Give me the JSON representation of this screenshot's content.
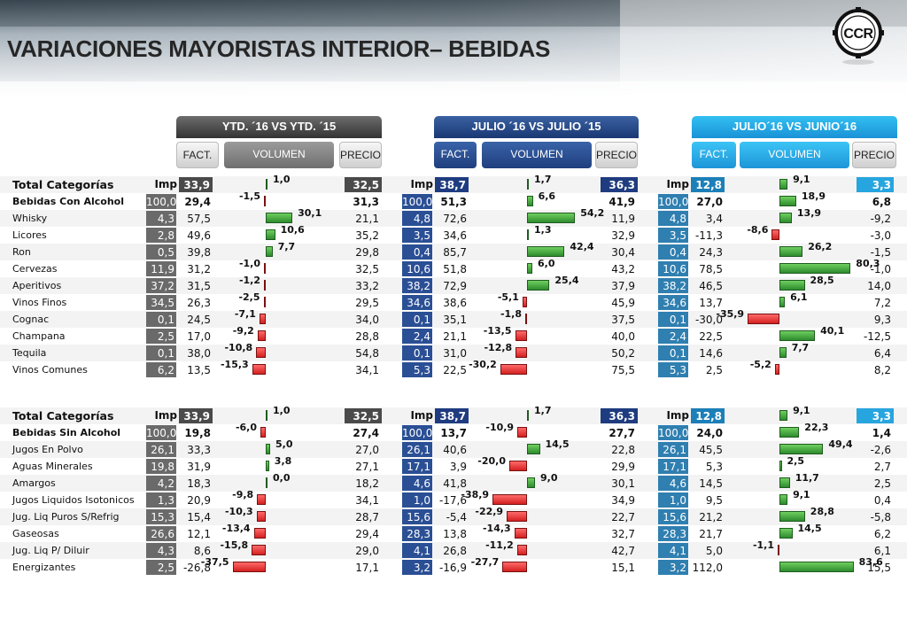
{
  "title": "VARIACIONES MAYORISTAS INTERIOR– BEBIDAS",
  "logo_text": "CCR",
  "colors": {
    "dark_panel": "#5a5a5a",
    "blue_panel": "#1f3c80",
    "cyan_panel": "#17a9e4",
    "bar_positive": "#2e8b2e",
    "bar_negative": "#d42020"
  },
  "panels": [
    {
      "header": "YTD. ´16 VS YTD. ´15",
      "fact": "FACT.",
      "volumen": "VOLUMEN",
      "precio": "PRECIO"
    },
    {
      "header": "JULIO ´16 VS JULIO ´15",
      "fact": "FACT.",
      "volumen": "VOLUMEN",
      "precio": "PRECIO"
    },
    {
      "header": "JULIO´16 VS JUNIO´16",
      "fact": "FACT.",
      "volumen": "VOLUMEN",
      "precio": "PRECIO"
    }
  ],
  "tables": [
    {
      "header_label": "Total  Categorías",
      "imp_label": "Imp",
      "header_values": [
        {
          "fact": "33,9",
          "vol": 1.0,
          "vol_label": "1,0",
          "precio": "32,5"
        },
        {
          "fact": "38,7",
          "vol": 1.7,
          "vol_label": "1,7",
          "precio": "36,3"
        },
        {
          "fact": "12,8",
          "vol": 9.1,
          "vol_label": "9,1",
          "precio": "3,3"
        }
      ],
      "rows": [
        {
          "name": "Bebidas Con Alcohol",
          "bold": true,
          "panels": [
            {
              "imp": "100,0",
              "fact": "29,4",
              "vol": -1.5,
              "vol_label": "-1,5",
              "precio": "31,3"
            },
            {
              "imp": "100,0",
              "fact": "51,3",
              "vol": 6.6,
              "vol_label": "6,6",
              "precio": "41,9"
            },
            {
              "imp": "100,0",
              "fact": "27,0",
              "vol": 18.9,
              "vol_label": "18,9",
              "precio": "6,8"
            }
          ]
        },
        {
          "name": "Whisky",
          "panels": [
            {
              "imp": "4,3",
              "fact": "57,5",
              "vol": 30.1,
              "vol_label": "30,1",
              "precio": "21,1"
            },
            {
              "imp": "4,8",
              "fact": "72,6",
              "vol": 54.2,
              "vol_label": "54,2",
              "precio": "11,9"
            },
            {
              "imp": "4,8",
              "fact": "3,4",
              "vol": 13.9,
              "vol_label": "13,9",
              "precio": "-9,2"
            }
          ]
        },
        {
          "name": "Licores",
          "panels": [
            {
              "imp": "2,8",
              "fact": "49,6",
              "vol": 10.6,
              "vol_label": "10,6",
              "precio": "35,2"
            },
            {
              "imp": "3,5",
              "fact": "34,6",
              "vol": 1.3,
              "vol_label": "1,3",
              "precio": "32,9"
            },
            {
              "imp": "3,5",
              "fact": "-11,3",
              "vol": -8.6,
              "vol_label": "-8,6",
              "precio": "-3,0"
            }
          ]
        },
        {
          "name": "Ron",
          "panels": [
            {
              "imp": "0,5",
              "fact": "39,8",
              "vol": 7.7,
              "vol_label": "7,7",
              "precio": "29,8"
            },
            {
              "imp": "0,4",
              "fact": "85,7",
              "vol": 42.4,
              "vol_label": "42,4",
              "precio": "30,4"
            },
            {
              "imp": "0,4",
              "fact": "24,3",
              "vol": 26.2,
              "vol_label": "26,2",
              "precio": "-1,5"
            }
          ]
        },
        {
          "name": "Cervezas",
          "panels": [
            {
              "imp": "11,9",
              "fact": "31,2",
              "vol": -1.0,
              "vol_label": "-1,0",
              "precio": "32,5"
            },
            {
              "imp": "10,6",
              "fact": "51,8",
              "vol": 6.0,
              "vol_label": "6,0",
              "precio": "43,2"
            },
            {
              "imp": "10,6",
              "fact": "78,5",
              "vol": 80.3,
              "vol_label": "80,3",
              "precio": "-1,0"
            }
          ]
        },
        {
          "name": "Aperitivos",
          "panels": [
            {
              "imp": "37,2",
              "fact": "31,5",
              "vol": -1.2,
              "vol_label": "-1,2",
              "precio": "33,2"
            },
            {
              "imp": "38,2",
              "fact": "72,9",
              "vol": 25.4,
              "vol_label": "25,4",
              "precio": "37,9"
            },
            {
              "imp": "38,2",
              "fact": "46,5",
              "vol": 28.5,
              "vol_label": "28,5",
              "precio": "14,0"
            }
          ]
        },
        {
          "name": "Vinos Finos",
          "panels": [
            {
              "imp": "34,5",
              "fact": "26,3",
              "vol": -2.5,
              "vol_label": "-2,5",
              "precio": "29,5"
            },
            {
              "imp": "34,6",
              "fact": "38,6",
              "vol": -5.1,
              "vol_label": "-5,1",
              "precio": "45,9"
            },
            {
              "imp": "34,6",
              "fact": "13,7",
              "vol": 6.1,
              "vol_label": "6,1",
              "precio": "7,2"
            }
          ]
        },
        {
          "name": "Cognac",
          "panels": [
            {
              "imp": "0,1",
              "fact": "24,5",
              "vol": -7.1,
              "vol_label": "-7,1",
              "precio": "34,0"
            },
            {
              "imp": "0,1",
              "fact": "35,1",
              "vol": -1.8,
              "vol_label": "-1,8",
              "precio": "37,5"
            },
            {
              "imp": "0,1",
              "fact": "-30,0",
              "vol": -35.9,
              "vol_label": "-35,9",
              "precio": "9,3"
            }
          ]
        },
        {
          "name": "Champana",
          "panels": [
            {
              "imp": "2,5",
              "fact": "17,0",
              "vol": -9.2,
              "vol_label": "-9,2",
              "precio": "28,8"
            },
            {
              "imp": "2,4",
              "fact": "21,1",
              "vol": -13.5,
              "vol_label": "-13,5",
              "precio": "40,0"
            },
            {
              "imp": "2,4",
              "fact": "22,5",
              "vol": 40.1,
              "vol_label": "40,1",
              "precio": "-12,5"
            }
          ]
        },
        {
          "name": "Tequila",
          "panels": [
            {
              "imp": "0,1",
              "fact": "38,0",
              "vol": -10.8,
              "vol_label": "-10,8",
              "precio": "54,8"
            },
            {
              "imp": "0,1",
              "fact": "31,0",
              "vol": -12.8,
              "vol_label": "-12,8",
              "precio": "50,2"
            },
            {
              "imp": "0,1",
              "fact": "14,6",
              "vol": 7.7,
              "vol_label": "7,7",
              "precio": "6,4"
            }
          ]
        },
        {
          "name": "Vinos Comunes",
          "panels": [
            {
              "imp": "6,2",
              "fact": "13,5",
              "vol": -15.3,
              "vol_label": "-15,3",
              "precio": "34,1"
            },
            {
              "imp": "5,3",
              "fact": "22,5",
              "vol": -30.2,
              "vol_label": "-30,2",
              "precio": "75,5"
            },
            {
              "imp": "5,3",
              "fact": "2,5",
              "vol": -5.2,
              "vol_label": "-5,2",
              "precio": "8,2"
            }
          ]
        }
      ]
    },
    {
      "header_label": "Total  Categorías",
      "imp_label": "Imp",
      "header_values": [
        {
          "fact": "33,9",
          "vol": 1.0,
          "vol_label": "1,0",
          "precio": "32,5"
        },
        {
          "fact": "38,7",
          "vol": 1.7,
          "vol_label": "1,7",
          "precio": "36,3"
        },
        {
          "fact": "12,8",
          "vol": 9.1,
          "vol_label": "9,1",
          "precio": "3,3"
        }
      ],
      "rows": [
        {
          "name": "Bebidas Sin Alcohol",
          "bold": true,
          "panels": [
            {
              "imp": "100,0",
              "fact": "19,8",
              "vol": -6.0,
              "vol_label": "-6,0",
              "precio": "27,4"
            },
            {
              "imp": "100,0",
              "fact": "13,7",
              "vol": -10.9,
              "vol_label": "-10,9",
              "precio": "27,7"
            },
            {
              "imp": "100,0",
              "fact": "24,0",
              "vol": 22.3,
              "vol_label": "22,3",
              "precio": "1,4"
            }
          ]
        },
        {
          "name": "Jugos En Polvo",
          "panels": [
            {
              "imp": "26,1",
              "fact": "33,3",
              "vol": 5.0,
              "vol_label": "5,0",
              "precio": "27,0"
            },
            {
              "imp": "26,1",
              "fact": "40,6",
              "vol": 14.5,
              "vol_label": "14,5",
              "precio": "22,8"
            },
            {
              "imp": "26,1",
              "fact": "45,5",
              "vol": 49.4,
              "vol_label": "49,4",
              "precio": "-2,6"
            }
          ]
        },
        {
          "name": "Aguas Minerales",
          "panels": [
            {
              "imp": "19,8",
              "fact": "31,9",
              "vol": 3.8,
              "vol_label": "3,8",
              "precio": "27,1"
            },
            {
              "imp": "17,1",
              "fact": "3,9",
              "vol": -20.0,
              "vol_label": "-20,0",
              "precio": "29,9"
            },
            {
              "imp": "17,1",
              "fact": "5,3",
              "vol": 2.5,
              "vol_label": "2,5",
              "precio": "2,7"
            }
          ]
        },
        {
          "name": "Amargos",
          "panels": [
            {
              "imp": "4,2",
              "fact": "18,3",
              "vol": 0.0,
              "vol_label": "0,0",
              "precio": "18,2"
            },
            {
              "imp": "4,6",
              "fact": "41,8",
              "vol": 9.0,
              "vol_label": "9,0",
              "precio": "30,1"
            },
            {
              "imp": "4,6",
              "fact": "14,5",
              "vol": 11.7,
              "vol_label": "11,7",
              "precio": "2,5"
            }
          ]
        },
        {
          "name": "Jugos Liquidos Isotonicos",
          "panels": [
            {
              "imp": "1,3",
              "fact": "20,9",
              "vol": -9.8,
              "vol_label": "-9,8",
              "precio": "34,1"
            },
            {
              "imp": "1,0",
              "fact": "-17,6",
              "vol": -38.9,
              "vol_label": "-38,9",
              "precio": "34,9"
            },
            {
              "imp": "1,0",
              "fact": "9,5",
              "vol": 9.1,
              "vol_label": "9,1",
              "precio": "0,4"
            }
          ]
        },
        {
          "name": "Jug. Liq Puros S/Refrig",
          "panels": [
            {
              "imp": "15,3",
              "fact": "15,4",
              "vol": -10.3,
              "vol_label": "-10,3",
              "precio": "28,7"
            },
            {
              "imp": "15,6",
              "fact": "-5,4",
              "vol": -22.9,
              "vol_label": "-22,9",
              "precio": "22,7"
            },
            {
              "imp": "15,6",
              "fact": "21,2",
              "vol": 28.8,
              "vol_label": "28,8",
              "precio": "-5,8"
            }
          ]
        },
        {
          "name": "Gaseosas",
          "panels": [
            {
              "imp": "26,6",
              "fact": "12,1",
              "vol": -13.4,
              "vol_label": "-13,4",
              "precio": "29,4"
            },
            {
              "imp": "28,3",
              "fact": "13,8",
              "vol": -14.3,
              "vol_label": "-14,3",
              "precio": "32,7"
            },
            {
              "imp": "28,3",
              "fact": "21,7",
              "vol": 14.5,
              "vol_label": "14,5",
              "precio": "6,2"
            }
          ]
        },
        {
          "name": "Jug. Liq P/ Diluir",
          "panels": [
            {
              "imp": "4,3",
              "fact": "8,6",
              "vol": -15.8,
              "vol_label": "-15,8",
              "precio": "29,0"
            },
            {
              "imp": "4,1",
              "fact": "26,8",
              "vol": -11.2,
              "vol_label": "-11,2",
              "precio": "42,7"
            },
            {
              "imp": "4,1",
              "fact": "5,0",
              "vol": -1.1,
              "vol_label": "-1,1",
              "precio": "6,1"
            }
          ]
        },
        {
          "name": "Energizantes",
          "panels": [
            {
              "imp": "2,5",
              "fact": "-26,8",
              "vol": -37.5,
              "vol_label": "-37,5",
              "precio": "17,1"
            },
            {
              "imp": "3,2",
              "fact": "-16,9",
              "vol": -27.7,
              "vol_label": "-27,7",
              "precio": "15,1"
            },
            {
              "imp": "3,2",
              "fact": "112,0",
              "vol": 83.6,
              "vol_label": "83,6",
              "precio": "15,5"
            }
          ]
        }
      ]
    }
  ]
}
